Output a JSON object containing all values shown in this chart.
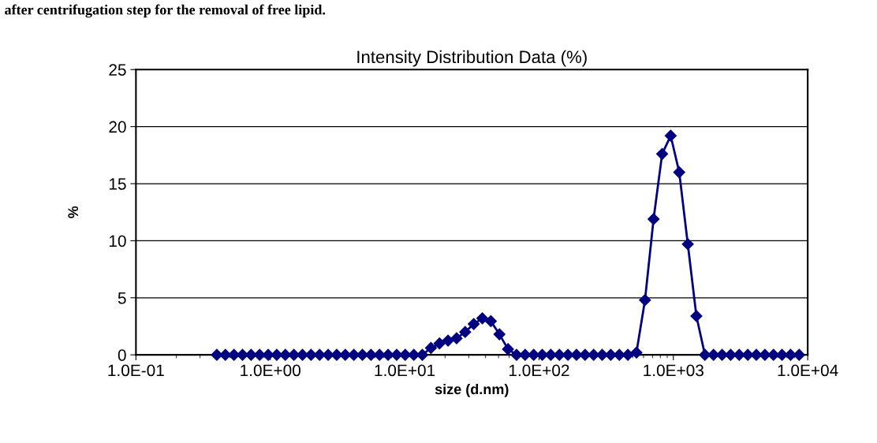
{
  "chart_data": {
    "type": "line",
    "title": "Intensity Distribution Data (%)",
    "xlabel": "size (d.nm)",
    "ylabel": "%",
    "annotations": [
      "after centrifugation step for the removal of free lipid."
    ],
    "log": "x",
    "marker": "diamond",
    "line_style": "solid",
    "grid": "y",
    "legend": false,
    "xlim": [
      0.1,
      10000
    ],
    "xticks": [
      {
        "value": 0.1,
        "label": "1.0E-01"
      },
      {
        "value": 1,
        "label": "1.0E+00"
      },
      {
        "value": 10,
        "label": "1.0E+01"
      },
      {
        "value": 100,
        "label": "1.0E+02"
      },
      {
        "value": 1000,
        "label": "1.0E+03"
      },
      {
        "value": 10000,
        "label": "1.0E+04"
      }
    ],
    "ylim": [
      0,
      25
    ],
    "yticks": [
      0,
      5,
      10,
      15,
      20,
      25
    ],
    "x": [
      0.4,
      0.4632,
      0.5365,
      0.6213,
      0.7195,
      0.8332,
      0.9649,
      1.117,
      1.294,
      1.499,
      1.736,
      2.01,
      2.328,
      2.696,
      3.122,
      3.615,
      4.187,
      4.849,
      5.615,
      6.503,
      7.531,
      8.721,
      10.1,
      11.7,
      13.54,
      15.69,
      18.17,
      21.04,
      24.36,
      28.21,
      32.67,
      37.84,
      43.82,
      50.75,
      58.77,
      68.06,
      78.82,
      91.28,
      105.7,
      122.4,
      141.8,
      164.2,
      190.1,
      220.2,
      255.0,
      295.3,
      342.0,
      396.1,
      458.7,
      531.2,
      615.1,
      712.4,
      825.0,
      955.4,
      1106,
      1281,
      1484,
      1718,
      1990,
      2305,
      2669,
      3091,
      3580,
      4145,
      4801,
      5560,
      6439,
      7456,
      8635
    ],
    "series": [
      {
        "color": "#000080",
        "values": [
          0,
          0,
          0,
          0,
          0,
          0,
          0,
          0,
          0,
          0,
          0,
          0,
          0,
          0,
          0,
          0,
          0,
          0,
          0,
          0,
          0,
          0,
          0,
          0,
          0,
          0.6,
          1.0,
          1.25,
          1.45,
          2.0,
          2.7,
          3.2,
          2.95,
          1.8,
          0.5,
          0,
          0,
          0,
          0,
          0,
          0,
          0,
          0,
          0,
          0,
          0,
          0,
          0,
          0,
          0.2,
          4.8,
          11.9,
          17.6,
          19.2,
          16.0,
          9.7,
          3.4,
          0,
          0,
          0,
          0,
          0,
          0,
          0,
          0,
          0,
          0,
          0,
          0
        ]
      }
    ]
  }
}
